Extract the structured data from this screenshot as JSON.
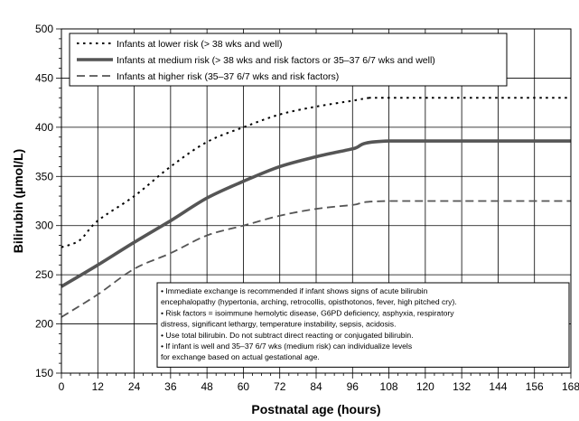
{
  "chart_data": {
    "type": "line",
    "title": "",
    "xlabel": "Postnatal age (hours)",
    "ylabel": "Bilirubin (µmol/L)",
    "xlim": [
      0,
      168
    ],
    "ylim": [
      150,
      500
    ],
    "x_ticks": [
      0,
      12,
      24,
      36,
      48,
      60,
      72,
      84,
      96,
      108,
      120,
      132,
      144,
      156,
      168
    ],
    "y_ticks": [
      150,
      200,
      250,
      300,
      350,
      400,
      450,
      500
    ],
    "grid": true,
    "legend_position": "top-left",
    "series": [
      {
        "name": "Infants at lower risk (> 38 wks and well)",
        "style": "dotted",
        "color": "#000000",
        "points": [
          [
            0,
            278
          ],
          [
            6,
            285
          ],
          [
            12,
            305
          ],
          [
            24,
            330
          ],
          [
            36,
            360
          ],
          [
            48,
            385
          ],
          [
            60,
            400
          ],
          [
            72,
            413
          ],
          [
            84,
            421
          ],
          [
            96,
            427
          ],
          [
            102,
            430
          ],
          [
            108,
            430
          ],
          [
            168,
            430
          ]
        ]
      },
      {
        "name": "Infants at medium risk (> 38 wks and risk factors or 35–37 6/7 wks  and well)",
        "style": "solid-thick",
        "color": "#555555",
        "points": [
          [
            0,
            238
          ],
          [
            12,
            260
          ],
          [
            24,
            283
          ],
          [
            36,
            305
          ],
          [
            48,
            328
          ],
          [
            60,
            345
          ],
          [
            72,
            360
          ],
          [
            84,
            370
          ],
          [
            96,
            378
          ],
          [
            108,
            386
          ],
          [
            168,
            386
          ]
        ]
      },
      {
        "name": "Infants at higher risk (35–37 6/7 wks and risk factors)",
        "style": "dashed",
        "color": "#555555",
        "points": [
          [
            0,
            207
          ],
          [
            12,
            230
          ],
          [
            24,
            256
          ],
          [
            36,
            272
          ],
          [
            48,
            290
          ],
          [
            60,
            300
          ],
          [
            72,
            310
          ],
          [
            84,
            317
          ],
          [
            96,
            321
          ],
          [
            108,
            325
          ],
          [
            168,
            325
          ]
        ]
      }
    ],
    "notes": [
      "• Immediate exchange is recommended if infant shows signs of acute bilirubin",
      "encephalopathy (hypertonia, arching, retrocollis, opisthotonos, fever, high pitched cry).",
      "• Risk factors = isoimmune hemolytic disease, G6PD deficiency, asphyxia, respiratory",
      "distress, significant lethargy, temperature instability, sepsis, acidosis.",
      "• Use total bilirubin. Do not subtract direct reacting or conjugated bilirubin.",
      "• If infant is well and 35–37 6/7 wks (medium risk) can individualize levels",
      "for exchange based on actual gestational age."
    ]
  }
}
